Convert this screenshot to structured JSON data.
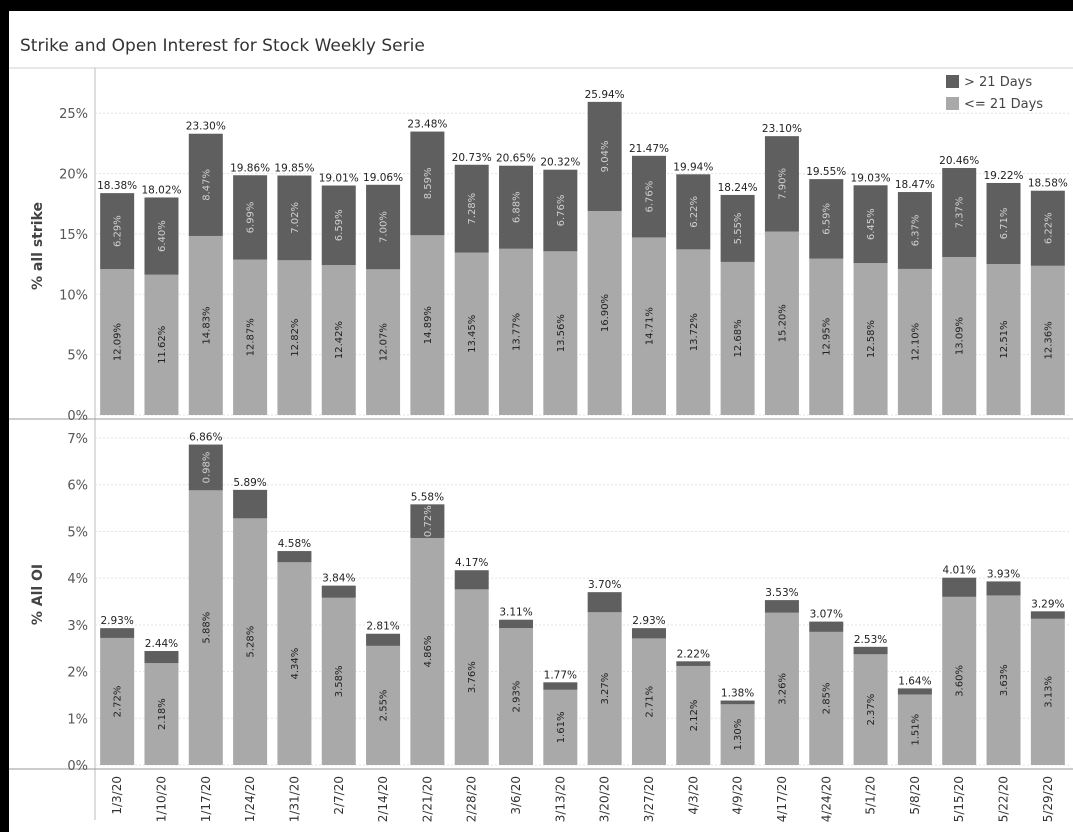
{
  "title": "Strike and Open Interest for Stock Weekly Serie",
  "chart_data": {
    "type": "bar",
    "stacked": true,
    "title": "Strike and Open Interest for Stock Weekly Serie",
    "categories": [
      "1/3/20",
      "1/10/20",
      "1/17/20",
      "1/24/20",
      "1/31/20",
      "2/7/20",
      "2/14/20",
      "2/21/20",
      "2/28/20",
      "3/6/20",
      "3/13/20",
      "3/20/20",
      "3/27/20",
      "4/3/20",
      "4/9/20",
      "4/17/20",
      "4/24/20",
      "5/1/20",
      "5/8/20",
      "5/15/20",
      "5/22/20",
      "5/29/20"
    ],
    "legend": {
      "position": "top-right",
      "entries": [
        "> 21 Days",
        "<= 21 Days"
      ]
    },
    "colors": {
      "gt21": "#5f5f5f",
      "le21": "#a9a9a9"
    },
    "panels": [
      {
        "ylabel": "% all strike",
        "ylim": [
          0,
          28
        ],
        "yticks": [
          0,
          5,
          10,
          15,
          20,
          25
        ],
        "ytick_labels": [
          "0%",
          "5%",
          "10%",
          "15%",
          "20%",
          "25%"
        ],
        "series": [
          {
            "name": "<= 21 Days",
            "values": [
              12.09,
              11.62,
              14.83,
              12.87,
              12.82,
              12.42,
              12.07,
              14.89,
              13.45,
              13.77,
              13.56,
              16.9,
              14.71,
              13.72,
              12.68,
              15.2,
              12.95,
              12.58,
              12.1,
              13.09,
              12.51,
              12.36
            ],
            "labels": [
              "12.09%",
              "11.62%",
              "14.83%",
              "12.87%",
              "12.82%",
              "12.42%",
              "12.07%",
              "14.89%",
              "13.45%",
              "13.77%",
              "13.56%",
              "16.90%",
              "14.71%",
              "13.72%",
              "12.68%",
              "15.20%",
              "12.95%",
              "12.58%",
              "12.10%",
              "13.09%",
              "12.51%",
              "12.36%"
            ]
          },
          {
            "name": "> 21 Days",
            "values": [
              6.29,
              6.4,
              8.47,
              6.99,
              7.02,
              6.59,
              7.0,
              8.59,
              7.28,
              6.88,
              6.76,
              9.04,
              6.76,
              6.22,
              5.55,
              7.9,
              6.59,
              6.45,
              6.37,
              7.37,
              6.71,
              6.22
            ],
            "labels": [
              "6.29%",
              "6.40%",
              "8.47%",
              "6.99%",
              "7.02%",
              "6.59%",
              "7.00%",
              "8.59%",
              "7.28%",
              "6.88%",
              "6.76%",
              "9.04%",
              "6.76%",
              "6.22%",
              "5.55%",
              "7.90%",
              "6.59%",
              "6.45%",
              "6.37%",
              "7.37%",
              "6.71%",
              "6.22%"
            ]
          }
        ],
        "totals": [
          "18.38%",
          "18.02%",
          "23.30%",
          "19.86%",
          "19.85%",
          "19.01%",
          "19.06%",
          "23.48%",
          "20.73%",
          "20.65%",
          "20.32%",
          "25.94%",
          "21.47%",
          "19.94%",
          "18.24%",
          "23.10%",
          "19.55%",
          "19.03%",
          "18.47%",
          "20.46%",
          "19.22%",
          "18.58%"
        ],
        "total_values": [
          18.38,
          18.02,
          23.3,
          19.86,
          19.85,
          19.01,
          19.06,
          23.48,
          20.73,
          20.65,
          20.32,
          25.94,
          21.47,
          19.94,
          18.24,
          23.1,
          19.55,
          19.03,
          18.47,
          20.46,
          19.22,
          18.58
        ]
      },
      {
        "ylabel": "% All OI",
        "ylim": [
          0,
          7.3
        ],
        "yticks": [
          0,
          1,
          2,
          3,
          4,
          5,
          6,
          7
        ],
        "ytick_labels": [
          "0%",
          "1%",
          "2%",
          "3%",
          "4%",
          "5%",
          "6%",
          "7%"
        ],
        "series": [
          {
            "name": "<= 21 Days",
            "values": [
              2.72,
              2.18,
              5.88,
              5.28,
              4.34,
              3.58,
              2.55,
              4.86,
              3.76,
              2.93,
              1.61,
              3.27,
              2.71,
              2.12,
              1.3,
              3.26,
              2.85,
              2.37,
              1.51,
              3.6,
              3.63,
              3.13
            ],
            "labels": [
              "2.72%",
              "2.18%",
              "5.88%",
              "5.28%",
              "4.34%",
              "3.58%",
              "2.55%",
              "4.86%",
              "3.76%",
              "2.93%",
              "1.61%",
              "3.27%",
              "2.71%",
              "2.12%",
              "1.30%",
              "3.26%",
              "2.85%",
              "2.37%",
              "1.51%",
              "3.60%",
              "3.63%",
              "3.13%"
            ]
          },
          {
            "name": "> 21 Days",
            "values": [
              0.21,
              0.26,
              0.98,
              0.61,
              0.24,
              0.26,
              0.26,
              0.72,
              0.41,
              0.18,
              0.16,
              0.43,
              0.22,
              0.1,
              0.08,
              0.27,
              0.22,
              0.16,
              0.13,
              0.41,
              0.3,
              0.16
            ],
            "labels": [
              "",
              "",
              "0.98%",
              "",
              "",
              "",
              "",
              "0.72%",
              "",
              "",
              "",
              "",
              "",
              "",
              "",
              "",
              "",
              "",
              "",
              "",
              "",
              ""
            ]
          }
        ],
        "totals": [
          "2.93%",
          "2.44%",
          "6.86%",
          "5.89%",
          "4.58%",
          "3.84%",
          "2.81%",
          "5.58%",
          "4.17%",
          "3.11%",
          "1.77%",
          "3.70%",
          "2.93%",
          "2.22%",
          "1.38%",
          "3.53%",
          "3.07%",
          "2.53%",
          "1.64%",
          "4.01%",
          "3.93%",
          "3.29%"
        ],
        "total_values": [
          2.93,
          2.44,
          6.86,
          5.89,
          4.58,
          3.84,
          2.81,
          5.58,
          4.17,
          3.11,
          1.77,
          3.7,
          2.93,
          2.22,
          1.38,
          3.53,
          3.07,
          2.53,
          1.64,
          4.01,
          3.93,
          3.29
        ]
      }
    ]
  }
}
